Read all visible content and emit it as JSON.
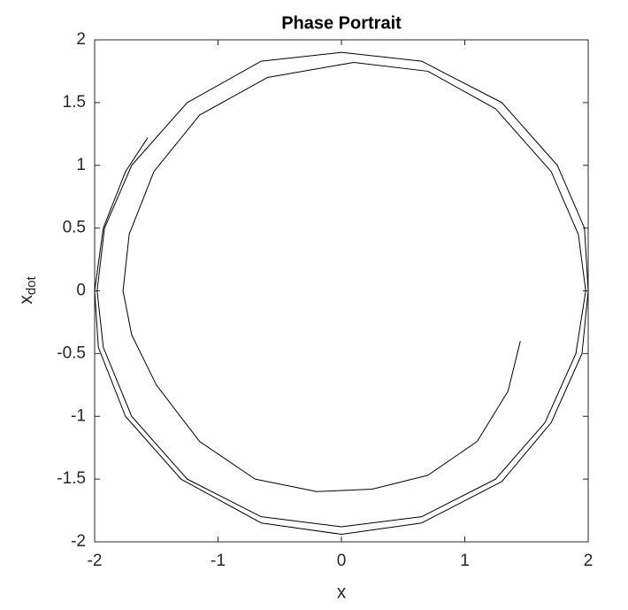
{
  "chart_data": {
    "type": "line",
    "title": "Phase Portrait",
    "xlabel": "x",
    "ylabel": "x",
    "ylabel_subscript": "dot",
    "xlim": [
      -2,
      2
    ],
    "ylim": [
      -2,
      2
    ],
    "xticks": [
      -2,
      -1,
      0,
      1,
      2
    ],
    "yticks": [
      -2,
      -1.5,
      -1,
      -0.5,
      0,
      0.5,
      1,
      1.5,
      2
    ],
    "grid": false,
    "series": [
      {
        "color": "#000000",
        "x": [
          1.45,
          1.35,
          1.1,
          0.7,
          0.25,
          -0.2,
          -0.7,
          -1.15,
          -1.5,
          -1.7,
          -1.77,
          -1.72,
          -1.52,
          -1.15,
          -0.6,
          0.1,
          0.7,
          1.25,
          1.7,
          1.92,
          1.98,
          1.9,
          1.65,
          1.25,
          0.65,
          0,
          -0.65,
          -1.25,
          -1.7,
          -1.93,
          -1.98,
          -1.92,
          -1.7,
          -1.25,
          -0.65,
          0,
          0.65,
          1.3,
          1.75,
          1.97,
          2.0,
          1.95,
          1.7,
          1.3,
          0.65,
          0,
          -0.65,
          -1.3,
          -1.75,
          -1.97,
          -2.0,
          -1.93,
          -1.75,
          -1.57
        ],
        "values": [
          -0.4,
          -0.8,
          -1.2,
          -1.47,
          -1.58,
          -1.6,
          -1.5,
          -1.2,
          -0.75,
          -0.35,
          0,
          0.45,
          0.95,
          1.4,
          1.7,
          1.82,
          1.75,
          1.45,
          0.95,
          0.45,
          0,
          -0.5,
          -1.05,
          -1.5,
          -1.8,
          -1.88,
          -1.8,
          -1.5,
          -1.0,
          -0.45,
          0,
          0.5,
          1.0,
          1.5,
          1.83,
          1.9,
          1.83,
          1.5,
          1.0,
          0.5,
          0,
          -0.5,
          -1.05,
          -1.52,
          -1.85,
          -1.94,
          -1.85,
          -1.5,
          -1.0,
          -0.45,
          0,
          0.5,
          0.95,
          1.22
        ]
      }
    ]
  }
}
